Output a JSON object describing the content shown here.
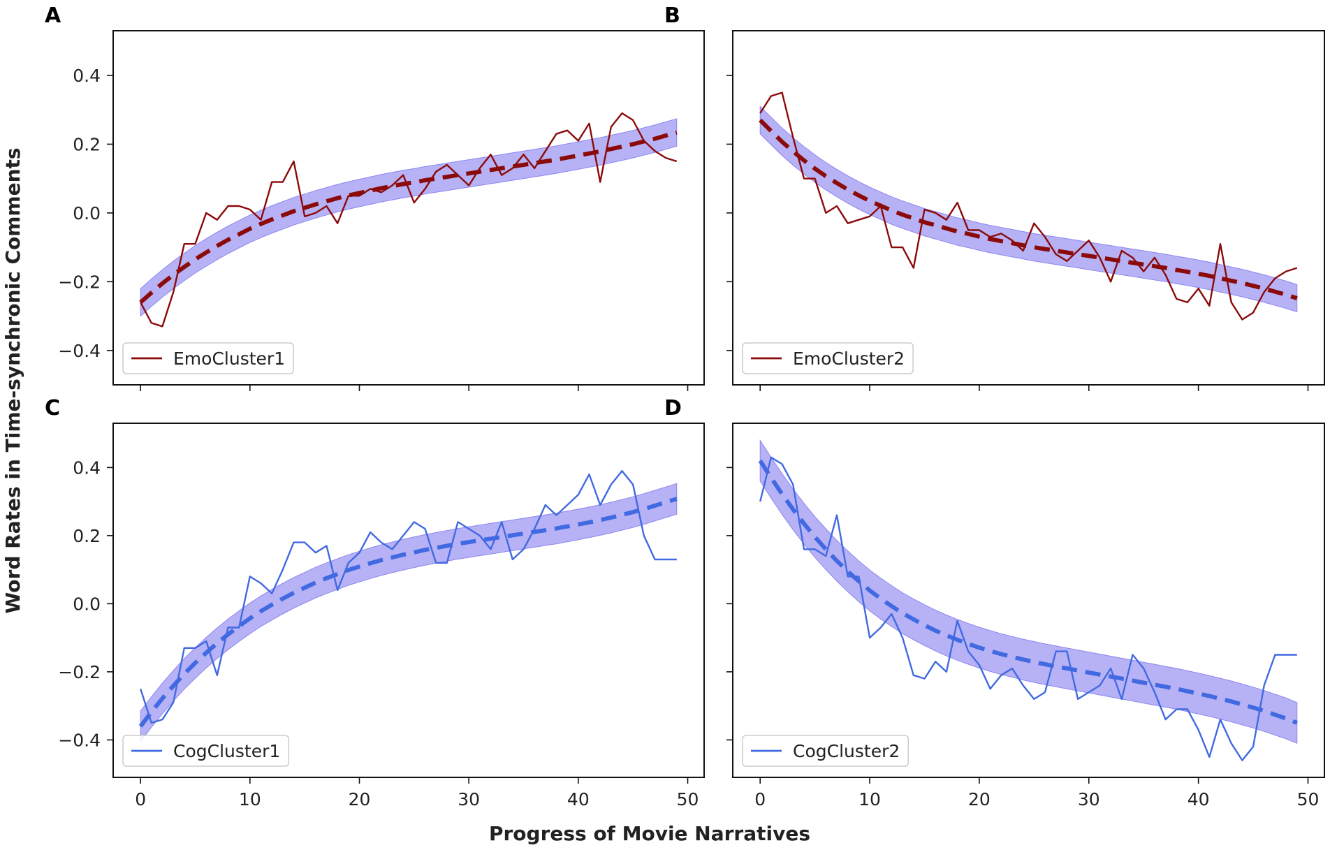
{
  "figure": {
    "ylabel": "Word Rates in Time-synchronic Comments",
    "xlabel": "Progress of Movie Narratives"
  },
  "colors": {
    "emo": "#8b0a0a",
    "cog": "#4169e1",
    "band": "#7b73ee",
    "axis": "#111111"
  },
  "chart_data": [
    {
      "panel": "A",
      "type": "line",
      "legend": "EmoCluster1",
      "legend_position": "lower-left",
      "color_key": "emo",
      "xlim": [
        -2.5,
        51.5
      ],
      "ylim": [
        -0.5,
        0.53
      ],
      "xticks": [
        0,
        10,
        20,
        30,
        40,
        50
      ],
      "yticks": [
        -0.4,
        -0.2,
        0.0,
        0.2,
        0.4
      ],
      "ytick_labels": [
        "−0.4",
        "−0.2",
        "0.0",
        "0.2",
        "0.4"
      ],
      "show_xtick_labels": false,
      "show_ytick_labels": true,
      "raw_series": [
        -0.26,
        -0.32,
        -0.33,
        -0.23,
        -0.09,
        -0.09,
        0.0,
        -0.02,
        0.02,
        0.02,
        0.01,
        -0.02,
        0.09,
        0.09,
        0.15,
        -0.01,
        0.0,
        0.02,
        -0.03,
        0.05,
        0.05,
        0.07,
        0.06,
        0.08,
        0.11,
        0.03,
        0.07,
        0.12,
        0.14,
        0.11,
        0.08,
        0.13,
        0.17,
        0.11,
        0.13,
        0.17,
        0.13,
        0.18,
        0.23,
        0.24,
        0.21,
        0.26,
        0.09,
        0.25,
        0.29,
        0.27,
        0.21,
        0.18,
        0.16,
        0.15
      ],
      "fit_series": [
        -0.26,
        -0.232,
        -0.205,
        -0.18,
        -0.157,
        -0.135,
        -0.115,
        -0.096,
        -0.078,
        -0.062,
        -0.046,
        -0.032,
        -0.019,
        -0.007,
        0.005,
        0.015,
        0.025,
        0.034,
        0.043,
        0.051,
        0.058,
        0.065,
        0.072,
        0.078,
        0.084,
        0.089,
        0.095,
        0.1,
        0.105,
        0.11,
        0.115,
        0.12,
        0.125,
        0.13,
        0.135,
        0.14,
        0.145,
        0.15,
        0.155,
        0.161,
        0.167,
        0.173,
        0.179,
        0.186,
        0.193,
        0.2,
        0.208,
        0.216,
        0.225,
        0.234
      ],
      "band_halfwidth": 0.04
    },
    {
      "panel": "B",
      "type": "line",
      "legend": "EmoCluster2",
      "legend_position": "lower-left",
      "color_key": "emo",
      "xlim": [
        -2.5,
        51.5
      ],
      "ylim": [
        -0.5,
        0.53
      ],
      "xticks": [
        0,
        10,
        20,
        30,
        40,
        50
      ],
      "yticks": [
        -0.4,
        -0.2,
        0.0,
        0.2,
        0.4
      ],
      "ytick_labels": [
        "−0.4",
        "−0.2",
        "0.0",
        "0.2",
        "0.4"
      ],
      "show_xtick_labels": false,
      "show_ytick_labels": false,
      "raw_series": [
        0.29,
        0.34,
        0.35,
        0.22,
        0.1,
        0.1,
        0.0,
        0.02,
        -0.03,
        -0.02,
        -0.01,
        0.02,
        -0.1,
        -0.1,
        -0.16,
        0.01,
        0.0,
        -0.02,
        0.03,
        -0.05,
        -0.05,
        -0.07,
        -0.06,
        -0.08,
        -0.11,
        -0.03,
        -0.07,
        -0.12,
        -0.14,
        -0.11,
        -0.08,
        -0.13,
        -0.2,
        -0.11,
        -0.13,
        -0.17,
        -0.13,
        -0.18,
        -0.25,
        -0.26,
        -0.22,
        -0.27,
        -0.09,
        -0.26,
        -0.31,
        -0.29,
        -0.23,
        -0.19,
        -0.17,
        -0.16
      ],
      "fit_series": [
        0.27,
        0.238,
        0.207,
        0.179,
        0.153,
        0.129,
        0.107,
        0.087,
        0.068,
        0.051,
        0.035,
        0.021,
        0.007,
        -0.005,
        -0.016,
        -0.027,
        -0.036,
        -0.045,
        -0.054,
        -0.061,
        -0.069,
        -0.076,
        -0.082,
        -0.088,
        -0.094,
        -0.1,
        -0.105,
        -0.11,
        -0.115,
        -0.12,
        -0.125,
        -0.13,
        -0.135,
        -0.14,
        -0.145,
        -0.15,
        -0.155,
        -0.16,
        -0.166,
        -0.171,
        -0.177,
        -0.183,
        -0.19,
        -0.197,
        -0.204,
        -0.212,
        -0.22,
        -0.229,
        -0.238,
        -0.248
      ],
      "band_halfwidth": 0.04
    },
    {
      "panel": "C",
      "type": "line",
      "legend": "CogCluster1",
      "legend_position": "lower-left",
      "color_key": "cog",
      "xlim": [
        -2.5,
        51.5
      ],
      "ylim": [
        -0.51,
        0.53
      ],
      "xticks": [
        0,
        10,
        20,
        30,
        40,
        50
      ],
      "xtick_labels": [
        "0",
        "10",
        "20",
        "30",
        "40",
        "50"
      ],
      "yticks": [
        -0.4,
        -0.2,
        0.0,
        0.2,
        0.4
      ],
      "ytick_labels": [
        "−0.4",
        "−0.2",
        "0.0",
        "0.2",
        "0.4"
      ],
      "show_xtick_labels": true,
      "show_ytick_labels": true,
      "raw_series": [
        -0.25,
        -0.35,
        -0.34,
        -0.29,
        -0.13,
        -0.13,
        -0.11,
        -0.21,
        -0.07,
        -0.07,
        0.08,
        0.06,
        0.03,
        0.1,
        0.18,
        0.18,
        0.15,
        0.17,
        0.04,
        0.12,
        0.15,
        0.21,
        0.18,
        0.16,
        0.2,
        0.24,
        0.22,
        0.12,
        0.12,
        0.24,
        0.22,
        0.2,
        0.16,
        0.24,
        0.13,
        0.16,
        0.22,
        0.29,
        0.26,
        0.29,
        0.32,
        0.38,
        0.29,
        0.35,
        0.39,
        0.35,
        0.2,
        0.13,
        0.13,
        0.13
      ],
      "fit_series": [
        -0.36,
        -0.318,
        -0.278,
        -0.241,
        -0.206,
        -0.174,
        -0.144,
        -0.116,
        -0.09,
        -0.066,
        -0.043,
        -0.022,
        -0.003,
        0.015,
        0.032,
        0.047,
        0.062,
        0.075,
        0.087,
        0.099,
        0.109,
        0.119,
        0.128,
        0.136,
        0.144,
        0.151,
        0.158,
        0.164,
        0.17,
        0.176,
        0.181,
        0.186,
        0.191,
        0.196,
        0.201,
        0.206,
        0.211,
        0.216,
        0.221,
        0.227,
        0.233,
        0.239,
        0.246,
        0.253,
        0.261,
        0.269,
        0.278,
        0.288,
        0.298,
        0.308
      ],
      "band_halfwidth": 0.045
    },
    {
      "panel": "D",
      "type": "line",
      "legend": "CogCluster2",
      "legend_position": "lower-left",
      "color_key": "cog",
      "xlim": [
        -2.5,
        51.5
      ],
      "ylim": [
        -0.51,
        0.53
      ],
      "xticks": [
        0,
        10,
        20,
        30,
        40,
        50
      ],
      "xtick_labels": [
        "0",
        "10",
        "20",
        "30",
        "40",
        "50"
      ],
      "yticks": [
        -0.4,
        -0.2,
        0.0,
        0.2,
        0.4
      ],
      "ytick_labels": [
        "−0.4",
        "−0.2",
        "0.0",
        "0.2",
        "0.4"
      ],
      "show_xtick_labels": true,
      "show_ytick_labels": false,
      "raw_series": [
        0.3,
        0.43,
        0.41,
        0.35,
        0.16,
        0.16,
        0.14,
        0.26,
        0.08,
        0.08,
        -0.1,
        -0.07,
        -0.03,
        -0.1,
        -0.21,
        -0.22,
        -0.17,
        -0.2,
        -0.05,
        -0.14,
        -0.18,
        -0.25,
        -0.21,
        -0.19,
        -0.24,
        -0.28,
        -0.26,
        -0.14,
        -0.14,
        -0.28,
        -0.26,
        -0.24,
        -0.19,
        -0.28,
        -0.15,
        -0.19,
        -0.26,
        -0.34,
        -0.31,
        -0.31,
        -0.37,
        -0.45,
        -0.34,
        -0.41,
        -0.46,
        -0.42,
        -0.24,
        -0.15,
        -0.15,
        -0.15
      ],
      "fit_series": [
        0.42,
        0.37,
        0.322,
        0.277,
        0.235,
        0.196,
        0.16,
        0.126,
        0.095,
        0.066,
        0.039,
        0.015,
        -0.007,
        -0.028,
        -0.046,
        -0.063,
        -0.079,
        -0.093,
        -0.106,
        -0.118,
        -0.129,
        -0.139,
        -0.148,
        -0.156,
        -0.164,
        -0.171,
        -0.178,
        -0.184,
        -0.19,
        -0.196,
        -0.202,
        -0.208,
        -0.214,
        -0.22,
        -0.226,
        -0.232,
        -0.238,
        -0.244,
        -0.25,
        -0.257,
        -0.264,
        -0.271,
        -0.279,
        -0.287,
        -0.296,
        -0.305,
        -0.315,
        -0.326,
        -0.337,
        -0.35
      ],
      "band_halfwidth": 0.06
    }
  ]
}
